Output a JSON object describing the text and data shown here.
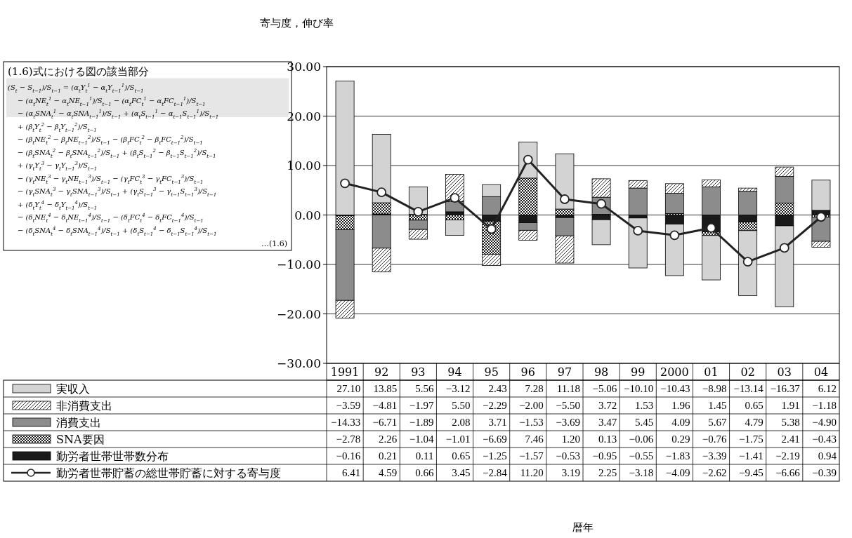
{
  "chart_data": {
    "type": "bar",
    "stacked": true,
    "ylabel": "寄与度，伸び率",
    "legend": "bottom",
    "grid": "y",
    "categories": [
      "1991",
      "92",
      "93",
      "94",
      "95",
      "96",
      "97",
      "98",
      "99",
      "2000",
      "01",
      "02",
      "03",
      "04"
    ],
    "ylim": [
      -30,
      30
    ],
    "yticks": [
      {
        "value": -30,
        "label": "−30.00"
      },
      {
        "value": -20,
        "label": "−20.00"
      },
      {
        "value": -10,
        "label": "−10.00"
      },
      {
        "value": 0,
        "label": "0.00"
      },
      {
        "value": 10,
        "label": "10.00"
      },
      {
        "value": 20,
        "label": "20.00"
      },
      {
        "value": 30,
        "label": "30.00"
      }
    ],
    "series": [
      {
        "name": "勤労者世帯世帯数分布",
        "color": "#1a1a1a",
        "values": [
          -0.16,
          0.21,
          0.11,
          0.65,
          -1.25,
          -1.57,
          -0.53,
          -0.95,
          -0.55,
          -1.83,
          -3.39,
          -1.41,
          -2.19,
          0.94
        ],
        "value_labels": [
          "−0.16",
          "0.21",
          "0.11",
          "0.65",
          "−1.25",
          "−1.57",
          "−0.53",
          "−0.95",
          "−0.55",
          "−1.83",
          "−3.39",
          "−1.41",
          "−2.19",
          "0.94"
        ]
      },
      {
        "name": "SNA要因",
        "color": "#000000",
        "values": [
          -2.78,
          2.26,
          -1.04,
          -1.01,
          -6.69,
          7.46,
          1.2,
          0.13,
          -0.06,
          0.29,
          -0.76,
          -1.75,
          2.41,
          -0.43
        ],
        "value_labels": [
          "−2.78",
          "2.26",
          "−1.04",
          "−1.01",
          "−6.69",
          "7.46",
          "1.20",
          "0.13",
          "−0.06",
          "0.29",
          "−0.76",
          "−1.75",
          "2.41",
          "−0.43"
        ]
      },
      {
        "name": "消費支出",
        "color": "#8c8c8c",
        "values": [
          -14.33,
          -6.71,
          -1.89,
          2.08,
          3.71,
          -1.53,
          -3.69,
          3.47,
          5.45,
          4.09,
          5.67,
          4.79,
          5.38,
          -4.9
        ],
        "value_labels": [
          "−14.33",
          "−6.71",
          "−1.89",
          "2.08",
          "3.71",
          "−1.53",
          "−3.69",
          "3.47",
          "5.45",
          "4.09",
          "5.67",
          "4.79",
          "5.38",
          "−4.90"
        ]
      },
      {
        "name": "非消費支出",
        "color": "#000000",
        "values": [
          -3.59,
          -4.81,
          -1.97,
          5.5,
          -2.29,
          -2.0,
          -5.5,
          3.72,
          1.53,
          1.96,
          1.45,
          0.65,
          1.91,
          -1.18
        ],
        "value_labels": [
          "−3.59",
          "−4.81",
          "−1.97",
          "5.50",
          "−2.29",
          "−2.00",
          "−5.50",
          "3.72",
          "1.53",
          "1.96",
          "1.45",
          "0.65",
          "1.91",
          "−1.18"
        ]
      },
      {
        "name": "実収入",
        "color": "#d3d3d3",
        "values": [
          27.1,
          13.85,
          5.56,
          -3.12,
          2.43,
          7.28,
          11.18,
          -5.06,
          -10.1,
          -10.43,
          -8.98,
          -13.14,
          -16.37,
          6.12
        ],
        "value_labels": [
          "27.10",
          "13.85",
          "5.56",
          "−3.12",
          "2.43",
          "7.28",
          "11.18",
          "−5.06",
          "−10.10",
          "−10.43",
          "−8.98",
          "−13.14",
          "−16.37",
          "6.12"
        ]
      },
      {
        "name": "勤労者世帯貯蓄の総世帯貯蓄に対する寄与度",
        "type": "line",
        "marker": "circle",
        "color": "#222222",
        "values": [
          6.41,
          4.59,
          0.66,
          3.45,
          -2.84,
          11.2,
          3.19,
          2.25,
          -3.18,
          -4.09,
          -2.62,
          -9.45,
          -6.66,
          -0.39
        ],
        "value_labels": [
          "6.41",
          "4.59",
          "0.66",
          "3.45",
          "−2.84",
          "11.20",
          "3.19",
          "2.25",
          "−3.18",
          "−4.09",
          "−2.62",
          "−9.45",
          "−6.66",
          "−0.39"
        ]
      }
    ],
    "annotations": [
      "(1.6)式における図の該当部分",
      "(S$_{t}$ − S$_{t−1}$)/S$_{t−1}$ = (α$_{t}$Y$_{t}$$^{1}$ − α$_{t}$Y$_{t−1}$$^{1}$)/S$_{t−1}$",
      "− (α$_{t}$NE$_{t}$$^{1}$ − α$_{t}$NE$_{t−1}$$^{1}$)/S$_{t−1}$ − (α$_{t}$FC$_{t}$$^{1}$ − α$_{t}$FC$_{t−1}$$^{1}$)/S$_{t−1}$",
      "− (α$_{t}$SNA$_{t}$$^{1}$ − α$_{t}$SNA$_{t−1}$$^{1}$)/S$_{t−1}$ + (α$_{t}$S$_{t−1}$$^{1}$ − α$_{t−1}$S$_{t−1}$$^{1}$)/S$_{t−1}$",
      "+ (β$_{t}$Y$_{t}$$^{2}$ − β$_{t}$Y$_{t−1}$$^{2}$)/S$_{t−1}$",
      "− (β$_{t}$NE$_{t}$$^{2}$ − β$_{t}$NE$_{t−1}$$^{2}$)/S$_{t−1}$ − (β$_{t}$FC$_{t}$$^{2}$ − β$_{t}$FC$_{t−1}$$^{2}$)/S$_{t−1}$",
      "− (β$_{t}$SNA$_{t}$$^{2}$ − β$_{t}$SNA$_{t−1}$$^{2}$)/S$_{t−1}$ + (β$_{t}$S$_{t−1}$$^{2}$ − β$_{t−1}$S$_{t−1}$$^{2}$)/S$_{t−1}$",
      "+ (γ$_{t}$Y$_{t}$$^{3}$ − γ$_{t}$Y$_{t−1}$$^{3}$)/S$_{t−1}$",
      "− (γ$_{t}$NE$_{t}$$^{3}$ − γ$_{t}$NE$_{t−1}$$^{3}$)/S$_{t−1}$ − (γ$_{t}$FC$_{t}$$^{3}$ − γ$_{t}$FC$_{t−1}$$^{3}$)/S$_{t−1}$",
      "− (γ$_{t}$SNA$_{t}$$^{3}$ − γ$_{t}$SNA$_{t−1}$$^{3}$)/S$_{t−1}$ + (γ$_{t}$S$_{t−1}$$^{3}$ − γ$_{t−1}$S$_{t−1}$$^{3}$)/S$_{t−1}$",
      "+ (δ$_{t}$Y$_{t}$$^{4}$ − δ$_{t}$Y$_{t−1}$$^{4}$)/S$_{t−1}$",
      "− (δ$_{t}$NE$_{t}$$^{4}$ − δ$_{t}$NE$_{t−1}$$^{4}$)/S$_{t−1}$ − (δ$_{t}$FC$_{t}$$^{4}$ − δ$_{t}$FC$_{t−1}$$^{4}$)/S$_{t−1}$",
      "− (δ$_{t}$SNA$_{t}$$^{4}$ − δ$_{t}$SNA$_{t−1}$$^{4}$)/S$_{t−1}$ + (δ$_{t}$S$_{t−1}$$^{4}$ − δ$_{t−1}$S$_{t−1}$$^{4}$)/S$_{t−1}$",
      "…(1.6)",
      "暦年"
    ]
  }
}
